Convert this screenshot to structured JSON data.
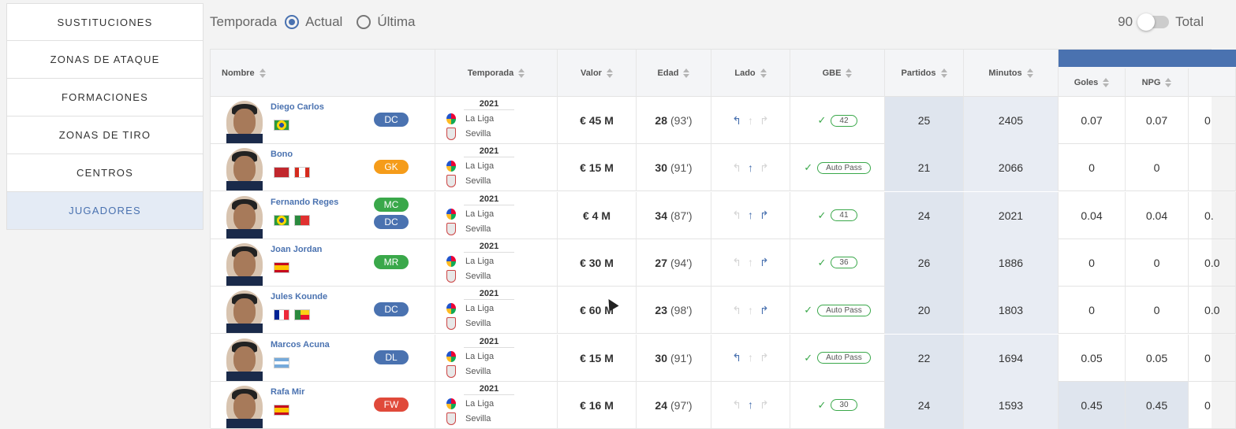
{
  "sidebar": {
    "items": [
      {
        "label": "SUSTITUCIONES"
      },
      {
        "label": "ZONAS DE ATAQUE"
      },
      {
        "label": "FORMACIONES"
      },
      {
        "label": "ZONAS DE TIRO"
      },
      {
        "label": "CENTROS"
      },
      {
        "label": "JUGADORES"
      }
    ],
    "active_index": 5
  },
  "controls": {
    "season_label": "Temporada",
    "option_actual": "Actual",
    "option_ultima": "Última",
    "selected": "Actual",
    "toggle_left": "90",
    "toggle_right": "Total"
  },
  "table": {
    "headers": {
      "nombre": "Nombre",
      "temporada": "Temporada",
      "valor": "Valor",
      "edad": "Edad",
      "lado": "Lado",
      "gbe": "GBE",
      "partidos": "Partidos",
      "minutos": "Minutos",
      "goles": "Goles",
      "npg": "NPG"
    },
    "rows": [
      {
        "name": "Diego Carlos",
        "flags": [
          "br"
        ],
        "positions": [
          {
            "pos": "DC",
            "color": "#4a72b0"
          }
        ],
        "year": "2021",
        "league": "La Liga",
        "team": "Sevilla",
        "value": "€ 45 M",
        "age": "28",
        "rating": "(93')",
        "side": [
          true,
          false,
          false
        ],
        "gbe": "42",
        "partidos": "25",
        "minutos": "2405",
        "goles": "0.07",
        "npg": "0.07",
        "extra": "0"
      },
      {
        "name": "Bono",
        "flags": [
          "ma",
          "ca"
        ],
        "positions": [
          {
            "pos": "GK",
            "color": "#f59c1a"
          }
        ],
        "year": "2021",
        "league": "La Liga",
        "team": "Sevilla",
        "value": "€ 15 M",
        "age": "30",
        "rating": "(91')",
        "side": [
          false,
          true,
          false
        ],
        "gbe": "Auto Pass",
        "partidos": "21",
        "minutos": "2066",
        "goles": "0",
        "npg": "0",
        "extra": ""
      },
      {
        "name": "Fernando Reges",
        "flags": [
          "br",
          "pt"
        ],
        "positions": [
          {
            "pos": "MC",
            "color": "#3aa84a"
          },
          {
            "pos": "DC",
            "color": "#4a72b0"
          }
        ],
        "year": "2021",
        "league": "La Liga",
        "team": "Sevilla",
        "value": "€ 4 M",
        "age": "34",
        "rating": "(87')",
        "side": [
          false,
          true,
          true
        ],
        "gbe": "41",
        "partidos": "24",
        "minutos": "2021",
        "goles": "0.04",
        "npg": "0.04",
        "extra": "0."
      },
      {
        "name": "Joan Jordan",
        "flags": [
          "es"
        ],
        "positions": [
          {
            "pos": "MR",
            "color": "#3aa84a"
          }
        ],
        "year": "2021",
        "league": "La Liga",
        "team": "Sevilla",
        "value": "€ 30 M",
        "age": "27",
        "rating": "(94')",
        "side": [
          false,
          false,
          true
        ],
        "gbe": "36",
        "partidos": "26",
        "minutos": "1886",
        "goles": "0",
        "npg": "0",
        "extra": "0.0"
      },
      {
        "name": "Jules Kounde",
        "flags": [
          "fr",
          "bj"
        ],
        "positions": [
          {
            "pos": "DC",
            "color": "#4a72b0"
          }
        ],
        "year": "2021",
        "league": "La Liga",
        "team": "Sevilla",
        "value": "€ 60 M",
        "age": "23",
        "rating": "(98')",
        "side": [
          false,
          false,
          true
        ],
        "gbe": "Auto Pass",
        "partidos": "20",
        "minutos": "1803",
        "goles": "0",
        "npg": "0",
        "extra": "0.0"
      },
      {
        "name": "Marcos Acuna",
        "flags": [
          "ar"
        ],
        "positions": [
          {
            "pos": "DL",
            "color": "#4a72b0"
          }
        ],
        "year": "2021",
        "league": "La Liga",
        "team": "Sevilla",
        "value": "€ 15 M",
        "age": "30",
        "rating": "(91')",
        "side": [
          true,
          false,
          false
        ],
        "gbe": "Auto Pass",
        "partidos": "22",
        "minutos": "1694",
        "goles": "0.05",
        "npg": "0.05",
        "extra": "0"
      },
      {
        "name": "Rafa Mir",
        "flags": [
          "es"
        ],
        "positions": [
          {
            "pos": "FW",
            "color": "#e0493a"
          }
        ],
        "year": "2021",
        "league": "La Liga",
        "team": "Sevilla",
        "value": "€ 16 M",
        "age": "24",
        "rating": "(97')",
        "side": [
          false,
          true,
          false
        ],
        "gbe": "30",
        "partidos": "24",
        "minutos": "1593",
        "goles": "0.45",
        "npg": "0.45",
        "extra": "0"
      }
    ]
  },
  "colors": {
    "accent": "#4a72b0",
    "green": "#3aa84a"
  }
}
